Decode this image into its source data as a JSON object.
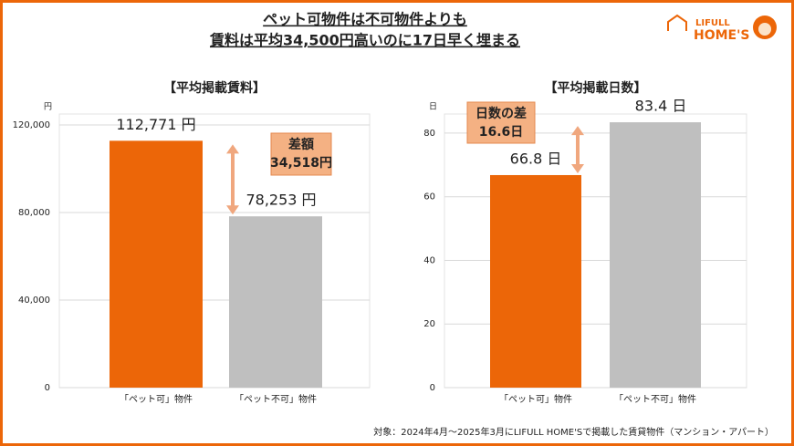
{
  "header": {
    "title_lines": [
      "ペット可物件は不可物件よりも",
      "賃料は平均34,500円高いのに17日早く埋まる"
    ]
  },
  "logo": {
    "brand": "LIFULL",
    "name": "HOME'S"
  },
  "footnote": "対象：2024年4月～2025年3月にLIFULL HOME'Sで掲載した賃貸物件（マンション・アパート）",
  "chart_data": [
    {
      "type": "bar",
      "title": "【平均掲載賃料】",
      "y_unit": "円",
      "categories": [
        "「ペット可」物件",
        "「ペット不可」物件"
      ],
      "values": [
        112771,
        78253
      ],
      "value_labels": [
        "112,771 円",
        "78,253 円"
      ],
      "colors": [
        "#ec6608",
        "#bfbfbf"
      ],
      "ylim": [
        0,
        125000
      ],
      "yticks": [
        0,
        {
          "value": 40000,
          "label": "40,000"
        },
        {
          "value": 80000,
          "label": "80,000"
        },
        {
          "value": 120000,
          "label": "120,000"
        }
      ],
      "grid": true,
      "annotation": {
        "lines": [
          "差額",
          "34,518円"
        ]
      }
    },
    {
      "type": "bar",
      "title": "【平均掲載日数】",
      "y_unit": "日",
      "categories": [
        "「ペット可」物件",
        "「ペット不可」物件"
      ],
      "values": [
        66.8,
        83.4
      ],
      "value_labels": [
        "66.8 日",
        "83.4 日"
      ],
      "colors": [
        "#ec6608",
        "#bfbfbf"
      ],
      "ylim": [
        0,
        86
      ],
      "yticks": [
        0,
        20,
        40,
        60,
        80
      ],
      "grid": true,
      "annotation": {
        "lines": [
          "日数の差",
          "16.6日"
        ]
      }
    }
  ]
}
